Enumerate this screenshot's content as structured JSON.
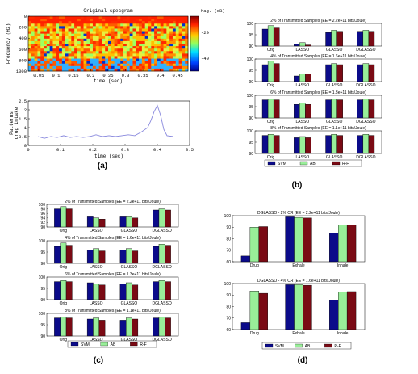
{
  "colors": {
    "SVM": "#0b0b8a",
    "AB": "#99ee99",
    "R-F": "#7a0a14",
    "drug_line": "#8888dd"
  },
  "panels": {
    "a": "(a)",
    "b": "(b)",
    "c": "(c)",
    "d": "(d)"
  },
  "chart_data": [
    {
      "id": "a-spec",
      "type": "heatmap",
      "title": "Original specgram",
      "xlabel": "time (sec)",
      "ylabel": "Frequency (Hz)",
      "xticks": [
        "0.05",
        "0.1",
        "0.15",
        "0.2",
        "0.25",
        "0.3",
        "0.35",
        "0.4",
        "0.45"
      ],
      "yticks": [
        "0",
        "200",
        "400",
        "600",
        "800",
        "1000"
      ],
      "colorbar": {
        "label": "Mag. (dB)",
        "ticks": [
          "-20",
          "-40"
        ]
      },
      "xlim": [
        0.02,
        0.48
      ],
      "ylim": [
        0,
        1000
      ]
    },
    {
      "id": "a-line",
      "type": "line",
      "ylabel": "Patterns drug intake",
      "xlabel": "time (sec)",
      "xticks": [
        "0",
        "0.1",
        "0.2",
        "0.3",
        "0.4",
        "0.5"
      ],
      "yticks": [
        "0",
        "0.5",
        "1",
        "1.5",
        "2",
        "2.5"
      ],
      "xlim": [
        0,
        0.5
      ],
      "ylim": [
        0,
        2.5
      ],
      "x": [
        0.03,
        0.05,
        0.07,
        0.09,
        0.11,
        0.13,
        0.15,
        0.17,
        0.19,
        0.21,
        0.23,
        0.25,
        0.27,
        0.29,
        0.31,
        0.33,
        0.35,
        0.37,
        0.38,
        0.39,
        0.4,
        0.41,
        0.42,
        0.43,
        0.45
      ],
      "y": [
        0.5,
        0.4,
        0.5,
        0.45,
        0.55,
        0.45,
        0.5,
        0.45,
        0.5,
        0.6,
        0.5,
        0.55,
        0.5,
        0.55,
        0.6,
        0.55,
        0.75,
        1.0,
        1.4,
        1.9,
        2.25,
        1.7,
        0.9,
        0.55,
        0.5
      ]
    },
    {
      "id": "b",
      "type": "bar",
      "categories": [
        "Orig",
        "LASSO",
        "GLASSO",
        "DGLASSO"
      ],
      "legend": [
        "SVM",
        "AB",
        "R-F"
      ],
      "subplots": [
        {
          "title": "2% of Transmitted Samples (EE = 2.2e+11 bits/Joule)",
          "ylim": [
            90,
            100
          ],
          "yticks": [
            "90",
            "95",
            "100"
          ],
          "series": [
            {
              "name": "SVM",
              "values": [
                97.5,
                91,
                96,
                96.5
              ]
            },
            {
              "name": "AB",
              "values": [
                99,
                91.5,
                97,
                97
              ]
            },
            {
              "name": "R-F",
              "values": [
                98,
                90.5,
                96.5,
                96.5
              ]
            }
          ]
        },
        {
          "title": "4% of Transmitted Samples (EE = 1.6e+11 bits/Joule)",
          "ylim": [
            90,
            100
          ],
          "yticks": [
            "90",
            "95",
            "100"
          ],
          "series": [
            {
              "name": "SVM",
              "values": [
                97.5,
                92.5,
                97.5,
                97.5
              ]
            },
            {
              "name": "AB",
              "values": [
                99,
                93.5,
                98,
                98
              ]
            },
            {
              "name": "R-F",
              "values": [
                98,
                93.5,
                97.5,
                97.5
              ]
            }
          ]
        },
        {
          "title": "6% of Transmitted Samples (EE = 1.3e+11 bits/Joule)",
          "ylim": [
            90,
            100
          ],
          "yticks": [
            "90",
            "95",
            "100"
          ],
          "series": [
            {
              "name": "SVM",
              "values": [
                98,
                96,
                98,
                98
              ]
            },
            {
              "name": "AB",
              "values": [
                98.5,
                96.5,
                98.5,
                98.5
              ]
            },
            {
              "name": "R-F",
              "values": [
                98,
                96,
                98,
                98
              ]
            }
          ]
        },
        {
          "title": "8% of Transmitted Samples (EE = 1.1e+11 bits/Joule)",
          "ylim": [
            90,
            100
          ],
          "yticks": [
            "90",
            "95",
            "100"
          ],
          "series": [
            {
              "name": "SVM",
              "values": [
                98,
                97,
                98,
                98
              ]
            },
            {
              "name": "AB",
              "values": [
                98.5,
                97.5,
                98.5,
                98.5
              ]
            },
            {
              "name": "R-F",
              "values": [
                98,
                97,
                98,
                98
              ]
            }
          ]
        }
      ]
    },
    {
      "id": "c",
      "type": "bar",
      "categories": [
        "Orig",
        "LASSO",
        "GLASSO",
        "DGLASSO"
      ],
      "legend": [
        "SVM",
        "AB",
        "R-F"
      ],
      "subplots": [
        {
          "title": "2% of Transmitted Samples (EE = 2.2e+11 bits/Joule)",
          "ylim": [
            90,
            100
          ],
          "yticks": [
            "90",
            "92",
            "94",
            "96",
            "98",
            "100"
          ],
          "series": [
            {
              "name": "SVM",
              "values": [
                98,
                94.5,
                94.5,
                97.5
              ]
            },
            {
              "name": "AB",
              "values": [
                99,
                94,
                94.5,
                98
              ]
            },
            {
              "name": "R-F",
              "values": [
                98,
                93.5,
                94,
                97.5
              ]
            }
          ]
        },
        {
          "title": "4% of Transmitted Samples (EE = 1.6e+11 bits/Joule)",
          "ylim": [
            90,
            100
          ],
          "yticks": [
            "90",
            "95",
            "100"
          ],
          "series": [
            {
              "name": "SVM",
              "values": [
                97.5,
                96,
                96,
                97.5
              ]
            },
            {
              "name": "AB",
              "values": [
                99,
                96.5,
                96.5,
                98.5
              ]
            },
            {
              "name": "R-F",
              "values": [
                98,
                95.5,
                95.5,
                98
              ]
            }
          ]
        },
        {
          "title": "6% of Transmitted Samples (EE = 1.3e+11 bits/Joule)",
          "ylim": [
            90,
            100
          ],
          "yticks": [
            "90",
            "95",
            "100"
          ],
          "series": [
            {
              "name": "SVM",
              "values": [
                98,
                97.5,
                97,
                98
              ]
            },
            {
              "name": "AB",
              "values": [
                98.5,
                97,
                97.5,
                98.5
              ]
            },
            {
              "name": "R-F",
              "values": [
                98,
                96.5,
                96.5,
                98
              ]
            }
          ]
        },
        {
          "title": "8% of Transmitted Samples (EE = 1.1e+11 bits/Joule)",
          "ylim": [
            90,
            100
          ],
          "yticks": [
            "90",
            "95",
            "100"
          ],
          "series": [
            {
              "name": "SVM",
              "values": [
                98,
                97.5,
                97,
                98
              ]
            },
            {
              "name": "AB",
              "values": [
                98.5,
                98,
                98,
                98.5
              ]
            },
            {
              "name": "R-F",
              "values": [
                98,
                97,
                97.5,
                98
              ]
            }
          ]
        }
      ]
    },
    {
      "id": "d",
      "type": "bar",
      "categories": [
        "Drug",
        "Exhale",
        "Inhale"
      ],
      "legend": [
        "SVM",
        "AB",
        "R-F"
      ],
      "subplots": [
        {
          "title": "DGLASSO - 2% CR (EE = 2.2e+11 bits/Joule)",
          "ylim": [
            60,
            100
          ],
          "yticks": [
            "60",
            "70",
            "80",
            "90",
            "100"
          ],
          "series": [
            {
              "name": "SVM",
              "values": [
                65,
                99,
                85
              ]
            },
            {
              "name": "AB",
              "values": [
                90,
                98.5,
                92
              ]
            },
            {
              "name": "R-F",
              "values": [
                90.5,
                98,
                92
              ]
            }
          ]
        },
        {
          "title": "DGLASSO - 4% CR (EE = 1.6e+11 bits/Joule)",
          "ylim": [
            60,
            100
          ],
          "yticks": [
            "60",
            "70",
            "80",
            "90",
            "100"
          ],
          "series": [
            {
              "name": "SVM",
              "values": [
                66,
                99,
                85.5
              ]
            },
            {
              "name": "AB",
              "values": [
                93.5,
                99,
                92.5
              ]
            },
            {
              "name": "R-F",
              "values": [
                91.5,
                98.5,
                93
              ]
            }
          ]
        }
      ]
    }
  ]
}
